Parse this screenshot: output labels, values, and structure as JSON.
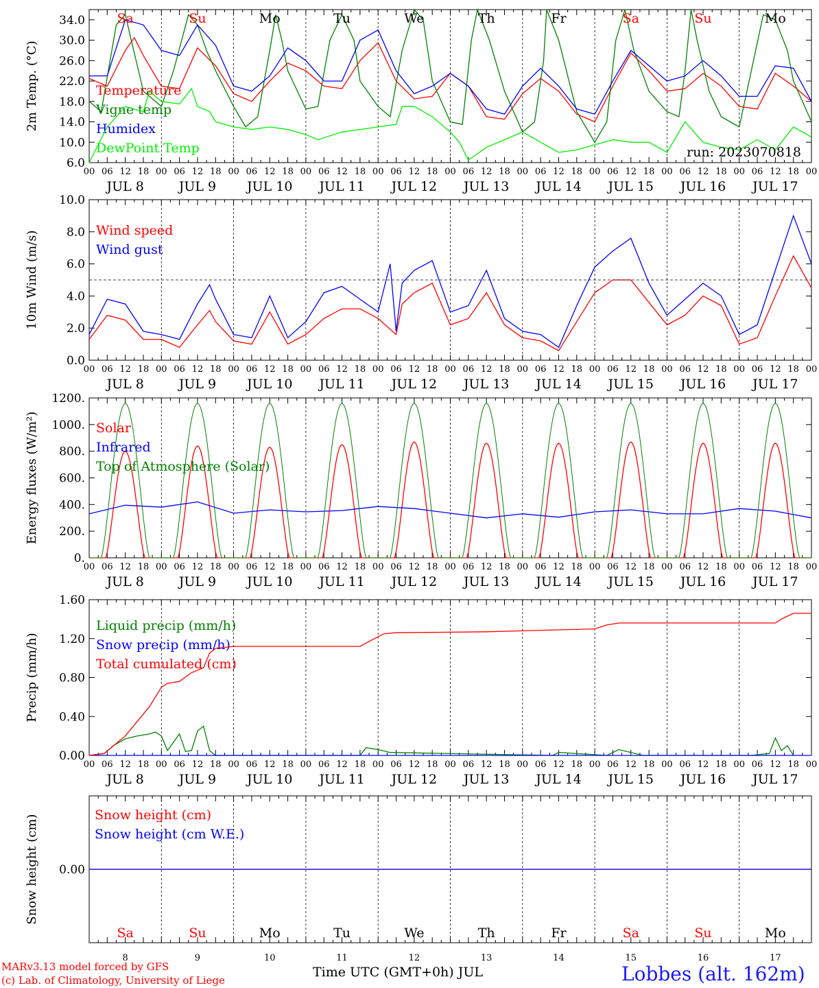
{
  "run_label": "run: 2023070818",
  "days": [
    "Sa",
    "Su",
    "Mo",
    "Tu",
    "We",
    "Th",
    "Fr",
    "Sa",
    "Su",
    "Mo"
  ],
  "weekend_flags": [
    true,
    true,
    false,
    false,
    false,
    false,
    false,
    true,
    true,
    false
  ],
  "day_numbers": [
    "8",
    "9",
    "10",
    "11",
    "12",
    "13",
    "14",
    "15",
    "16",
    "17"
  ],
  "date_labels": [
    "JUL  8",
    "JUL  9",
    "JUL 10",
    "JUL 11",
    "JUL 12",
    "JUL 13",
    "JUL 14",
    "JUL 15",
    "JUL 16",
    "JUL 17"
  ],
  "hour_labels": [
    "00",
    "06",
    "12",
    "18"
  ],
  "footer": {
    "model_line": "MARv3.13 model forced by GFS",
    "lab_line": "(c) Lab. of Climatology, University of Liege",
    "x_title": "Time UTC (GMT+0h) JUL",
    "station": "Lobbes (alt. 162m)"
  },
  "colors": {
    "red": "#ff0000",
    "blue": "#0000ff",
    "dark_green": "#008000",
    "light_green": "#00ee00",
    "purple": "#7f00ff",
    "grid": "#000000"
  },
  "chart_data": [
    {
      "id": "temperature",
      "type": "line",
      "ylabel": "2m Temp. (°C)",
      "ylim": [
        6,
        36
      ],
      "yticks": [
        "6.0",
        "10.0",
        "14.0",
        "18.0",
        "22.0",
        "26.0",
        "30.0",
        "34.0"
      ],
      "ytick_values": [
        6,
        10,
        14,
        18,
        22,
        26,
        30,
        34
      ],
      "x_unit": "hours since JUL 8 00 UTC",
      "xlim": [
        0,
        240
      ],
      "series": [
        {
          "name": "Temperature",
          "color": "#ff0000",
          "x": [
            0,
            6,
            12,
            15,
            18,
            24,
            30,
            36,
            42,
            48,
            54,
            60,
            66,
            72,
            78,
            84,
            90,
            96,
            102,
            108,
            114,
            120,
            126,
            132,
            138,
            144,
            150,
            156,
            162,
            168,
            174,
            180,
            186,
            192,
            198,
            204,
            210,
            216,
            222,
            228,
            234,
            240
          ],
          "y": [
            22.5,
            21,
            28,
            30.5,
            27,
            21,
            20.5,
            28.5,
            25,
            19.5,
            18,
            22,
            25.5,
            24,
            21,
            20.5,
            26,
            29.5,
            22,
            18.5,
            19,
            23.5,
            21,
            15,
            14.5,
            19.5,
            22.5,
            20,
            15.5,
            14,
            21,
            27.5,
            24,
            20,
            20.5,
            23.5,
            21,
            17,
            16.5,
            23.5,
            21,
            18
          ]
        },
        {
          "name": "Vigne temp",
          "color": "#008000",
          "x": [
            0,
            4,
            9,
            12,
            14,
            18,
            24,
            28,
            33,
            36,
            39,
            42,
            48,
            52,
            56,
            60,
            62,
            64,
            66,
            72,
            76,
            80,
            84,
            88,
            90,
            96,
            100,
            104,
            108,
            111,
            114,
            120,
            124,
            127,
            129,
            133,
            138,
            144,
            148,
            151,
            152,
            156,
            162,
            168,
            172,
            175,
            178,
            181,
            186,
            192,
            196,
            198,
            200,
            202,
            206,
            210,
            216,
            220,
            224,
            228,
            232,
            234,
            240
          ],
          "y": [
            18,
            16,
            33,
            35,
            30,
            20,
            17,
            24,
            35,
            33,
            28,
            24,
            17,
            13,
            15,
            28,
            35,
            30,
            24,
            16.5,
            17,
            30,
            35,
            30,
            22,
            17,
            15,
            28,
            36,
            34,
            22,
            14,
            13.5,
            30,
            36,
            30,
            20,
            12,
            14,
            26,
            36,
            30,
            16,
            10,
            14,
            30,
            36,
            28,
            20,
            16,
            15,
            24,
            36,
            30,
            20,
            15,
            13,
            24,
            35,
            34,
            28,
            22,
            14
          ]
        },
        {
          "name": "Humidex",
          "color": "#0000ff",
          "x": [
            0,
            6,
            12,
            18,
            24,
            30,
            36,
            42,
            48,
            54,
            60,
            66,
            72,
            78,
            84,
            90,
            96,
            102,
            108,
            114,
            120,
            126,
            132,
            138,
            144,
            150,
            156,
            162,
            168,
            174,
            180,
            186,
            192,
            198,
            204,
            210,
            216,
            222,
            228,
            234,
            240
          ],
          "y": [
            23,
            23,
            34,
            33,
            28,
            27,
            33,
            29,
            21,
            20,
            23,
            28.5,
            26,
            22,
            22,
            30,
            32,
            24,
            19.5,
            21,
            23.5,
            21,
            16.5,
            15.5,
            21,
            24.5,
            21,
            16.5,
            15.5,
            22,
            28,
            25,
            22,
            23,
            26,
            23,
            19,
            19,
            25,
            24.5,
            18
          ]
        },
        {
          "name": "DewPoint Temp",
          "color": "#00ee00",
          "x": [
            0,
            6,
            12,
            18,
            20,
            24,
            30,
            34,
            36,
            40,
            42,
            48,
            54,
            60,
            66,
            72,
            76,
            84,
            90,
            96,
            102,
            104,
            108,
            114,
            120,
            123,
            126,
            132,
            138,
            144,
            150,
            156,
            162,
            168,
            174,
            180,
            186,
            192,
            198,
            204,
            210,
            216,
            222,
            228,
            234,
            240
          ],
          "y": [
            6,
            13,
            17,
            16,
            20,
            18,
            17.5,
            20.5,
            17,
            16,
            14,
            13,
            12.5,
            13,
            12.5,
            11.5,
            10.5,
            12,
            12.5,
            13,
            13.5,
            17,
            17,
            15,
            12,
            10,
            6.5,
            9,
            10.5,
            12,
            10,
            8,
            8.5,
            9.5,
            10.5,
            10,
            10,
            8,
            14,
            10,
            9,
            8.5,
            10.5,
            8.5,
            13,
            11
          ]
        }
      ]
    },
    {
      "id": "wind",
      "type": "line",
      "ylabel": "10m Wind (m/s)",
      "ylim": [
        0,
        10
      ],
      "yticks": [
        "0.0",
        "2.0",
        "4.0",
        "6.0",
        "8.0",
        "10.0"
      ],
      "ytick_values": [
        0,
        2,
        4,
        6,
        8,
        10
      ],
      "reference_line": 5,
      "x_unit": "hours since JUL 8 00 UTC",
      "xlim": [
        0,
        240
      ],
      "series": [
        {
          "name": "Wind speed",
          "color": "#ff0000",
          "x": [
            0,
            6,
            12,
            18,
            24,
            30,
            36,
            40,
            42,
            48,
            54,
            60,
            66,
            72,
            78,
            84,
            90,
            96,
            102,
            104,
            108,
            114,
            120,
            126,
            132,
            138,
            144,
            150,
            156,
            162,
            168,
            174,
            180,
            186,
            192,
            198,
            204,
            210,
            216,
            222,
            228,
            234,
            240
          ],
          "y": [
            1.3,
            2.8,
            2.5,
            1.3,
            1.3,
            0.8,
            2.2,
            3.1,
            2.4,
            1.2,
            1.0,
            3.0,
            1.0,
            1.6,
            2.6,
            3.2,
            3.2,
            2.6,
            1.6,
            3.5,
            4.2,
            4.8,
            2.2,
            2.6,
            4.2,
            2.2,
            1.4,
            1.2,
            0.6,
            2.4,
            4.2,
            5.0,
            5.0,
            3.6,
            2.2,
            2.8,
            4.0,
            3.4,
            1.0,
            1.4,
            4.0,
            6.5,
            4.5
          ]
        },
        {
          "name": "Wind gust",
          "color": "#0000ff",
          "x": [
            0,
            6,
            12,
            18,
            24,
            30,
            36,
            40,
            42,
            48,
            54,
            60,
            66,
            72,
            78,
            84,
            90,
            96,
            100,
            102,
            104,
            108,
            114,
            120,
            126,
            132,
            138,
            144,
            150,
            156,
            162,
            168,
            174,
            180,
            186,
            192,
            198,
            204,
            210,
            216,
            222,
            228,
            234,
            240
          ],
          "y": [
            1.6,
            3.8,
            3.5,
            1.8,
            1.6,
            1.3,
            3.5,
            4.7,
            3.8,
            1.6,
            1.4,
            4.0,
            1.4,
            2.4,
            4.2,
            4.6,
            3.8,
            3.0,
            6.0,
            1.8,
            4.8,
            5.6,
            6.2,
            3.0,
            3.4,
            5.6,
            2.6,
            1.8,
            1.6,
            0.8,
            3.4,
            5.8,
            6.8,
            7.6,
            4.8,
            2.8,
            3.8,
            4.8,
            4.0,
            1.6,
            2.2,
            5.6,
            9.0,
            6.0
          ]
        }
      ]
    },
    {
      "id": "energy",
      "type": "line",
      "ylabel": "Energy fluxes (W/m²)",
      "ylim": [
        0,
        1200
      ],
      "yticks": [
        "0.",
        "200.",
        "400.",
        "600.",
        "800.",
        "1000.",
        "1200."
      ],
      "ytick_values": [
        0,
        200,
        400,
        600,
        800,
        1000,
        1200
      ],
      "x_unit": "hours since JUL 8 00 UTC",
      "xlim": [
        0,
        240
      ],
      "series": [
        {
          "name": "Solar",
          "color": "#ff0000",
          "daily_peak": [
            800,
            840,
            830,
            850,
            870,
            860,
            860,
            870,
            860,
            860
          ]
        },
        {
          "name": "Infrared",
          "color": "#0000ff",
          "x": [
            0,
            12,
            24,
            36,
            48,
            60,
            72,
            84,
            96,
            108,
            120,
            132,
            144,
            156,
            168,
            180,
            192,
            204,
            216,
            228,
            240
          ],
          "y": [
            330,
            395,
            380,
            420,
            335,
            360,
            345,
            355,
            385,
            370,
            335,
            300,
            330,
            305,
            345,
            360,
            330,
            330,
            370,
            350,
            300
          ]
        },
        {
          "name": "Top of Atmosphere (Solar)",
          "color": "#008000",
          "daily_peak": 1160
        }
      ]
    },
    {
      "id": "precip",
      "type": "line",
      "ylabel": "Precip (mm/h)",
      "ylim": [
        0,
        1.6
      ],
      "yticks": [
        "0.00",
        "0.40",
        "0.80",
        "1.20",
        "1.60"
      ],
      "ytick_values": [
        0,
        0.4,
        0.8,
        1.2,
        1.6
      ],
      "x_unit": "hours since JUL 8 00 UTC",
      "xlim": [
        0,
        240
      ],
      "series": [
        {
          "name": "Liquid precip (mm/h)",
          "color": "#008000",
          "x": [
            0,
            5,
            8,
            12,
            16,
            20,
            22,
            24,
            26,
            30,
            32,
            34,
            36,
            38,
            40,
            42,
            90,
            92,
            96,
            100,
            154,
            156,
            172,
            176,
            180,
            184,
            220,
            226,
            228,
            230,
            232,
            234
          ],
          "y": [
            0,
            0.02,
            0.1,
            0.17,
            0.2,
            0.22,
            0.24,
            0.2,
            0.05,
            0.22,
            0.04,
            0.05,
            0.25,
            0.3,
            0.05,
            0,
            0,
            0.08,
            0.06,
            0.03,
            0,
            0.03,
            0,
            0.06,
            0.03,
            0,
            0,
            0.02,
            0.18,
            0.05,
            0.1,
            0
          ]
        },
        {
          "name": "Snow precip (mm/h)",
          "color": "#0000ff",
          "x": [
            0,
            240
          ],
          "y": [
            0,
            0
          ]
        },
        {
          "name": "Total cumulated (cm)",
          "color": "#ff0000",
          "x": [
            0,
            5,
            12,
            16,
            20,
            24,
            26,
            30,
            34,
            38,
            40,
            42,
            48,
            90,
            96,
            98,
            102,
            132,
            144,
            168,
            172,
            176,
            228,
            230,
            234,
            240
          ],
          "y": [
            0,
            0.02,
            0.2,
            0.35,
            0.5,
            0.7,
            0.74,
            0.76,
            0.85,
            0.9,
            1.05,
            1.1,
            1.12,
            1.12,
            1.22,
            1.25,
            1.26,
            1.27,
            1.28,
            1.3,
            1.34,
            1.36,
            1.36,
            1.4,
            1.46,
            1.46
          ]
        }
      ]
    },
    {
      "id": "snow",
      "type": "line",
      "ylabel": "Snow height (cm)",
      "ylim": [
        -1,
        1
      ],
      "yticks": [
        "0.00"
      ],
      "ytick_values": [
        0
      ],
      "x_unit": "hours since JUL 8 00 UTC",
      "xlim": [
        0,
        240
      ],
      "series": [
        {
          "name": "Snow height (cm)",
          "color": "#ff0000",
          "x": [
            0,
            240
          ],
          "y": [
            0,
            0
          ]
        },
        {
          "name": "Snow height (cm W.E.)",
          "color": "#0000ff",
          "x": [
            0,
            240
          ],
          "y": [
            0,
            0
          ]
        }
      ]
    }
  ]
}
